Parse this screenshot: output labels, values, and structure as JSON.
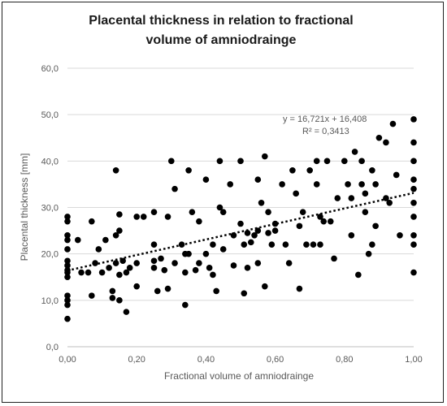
{
  "chart_data": {
    "type": "scatter",
    "title_line1": "Placental thickness in relation to fractional",
    "title_line2": "volume of amniodrainge",
    "xlabel": "Fractional volume of amniodrainge",
    "ylabel": "Placental thickness [mm]",
    "xlim": [
      0,
      1
    ],
    "ylim": [
      0,
      60
    ],
    "x_ticks": [
      "0,00",
      "0,20",
      "0,40",
      "0,60",
      "0,80",
      "1,00"
    ],
    "y_ticks": [
      "0,0",
      "10,0",
      "20,0",
      "30,0",
      "40,0",
      "50,0",
      "60,0"
    ],
    "grid": "horizontal",
    "marker_color": "#000000",
    "trendline": {
      "type": "linear",
      "slope": 16.721,
      "intercept": 16.408,
      "equation": "y = 16,721x + 16,408",
      "r_squared": "R² = 0,3413",
      "style": "dotted"
    },
    "points": [
      [
        0.0,
        28.0
      ],
      [
        0.0,
        27.0
      ],
      [
        0.0,
        24.0
      ],
      [
        0.0,
        23.0
      ],
      [
        0.0,
        21.0
      ],
      [
        0.0,
        18.5
      ],
      [
        0.0,
        17.5
      ],
      [
        0.0,
        16.5
      ],
      [
        0.0,
        16.0
      ],
      [
        0.0,
        15.0
      ],
      [
        0.0,
        11.0
      ],
      [
        0.0,
        10.0
      ],
      [
        0.0,
        9.0
      ],
      [
        0.0,
        6.0
      ],
      [
        0.03,
        23.0
      ],
      [
        0.04,
        16.0
      ],
      [
        0.06,
        16.0
      ],
      [
        0.07,
        27.0
      ],
      [
        0.07,
        11.0
      ],
      [
        0.08,
        18.0
      ],
      [
        0.09,
        21.0
      ],
      [
        0.1,
        16.0
      ],
      [
        0.11,
        23.0
      ],
      [
        0.12,
        17.0
      ],
      [
        0.13,
        12.0
      ],
      [
        0.13,
        10.5
      ],
      [
        0.14,
        38.0
      ],
      [
        0.14,
        24.0
      ],
      [
        0.14,
        18.0
      ],
      [
        0.15,
        28.5
      ],
      [
        0.15,
        25.0
      ],
      [
        0.15,
        15.5
      ],
      [
        0.15,
        10.0
      ],
      [
        0.16,
        18.5
      ],
      [
        0.17,
        16.0
      ],
      [
        0.17,
        7.5
      ],
      [
        0.18,
        17.0
      ],
      [
        0.2,
        28.0
      ],
      [
        0.2,
        18.0
      ],
      [
        0.2,
        13.0
      ],
      [
        0.22,
        28.0
      ],
      [
        0.25,
        29.0
      ],
      [
        0.25,
        22.0
      ],
      [
        0.25,
        18.5
      ],
      [
        0.25,
        17.0
      ],
      [
        0.26,
        12.0
      ],
      [
        0.27,
        19.0
      ],
      [
        0.28,
        16.5
      ],
      [
        0.29,
        28.0
      ],
      [
        0.29,
        12.5
      ],
      [
        0.3,
        40.0
      ],
      [
        0.31,
        34.0
      ],
      [
        0.31,
        18.0
      ],
      [
        0.33,
        22.0
      ],
      [
        0.34,
        20.0
      ],
      [
        0.34,
        16.0
      ],
      [
        0.34,
        9.0
      ],
      [
        0.35,
        20.0
      ],
      [
        0.35,
        38.0
      ],
      [
        0.36,
        29.0
      ],
      [
        0.37,
        16.5
      ],
      [
        0.38,
        18.0
      ],
      [
        0.38,
        27.0
      ],
      [
        0.4,
        36.0
      ],
      [
        0.4,
        20.0
      ],
      [
        0.41,
        17.0
      ],
      [
        0.42,
        22.0
      ],
      [
        0.42,
        15.5
      ],
      [
        0.43,
        12.0
      ],
      [
        0.44,
        40.0
      ],
      [
        0.44,
        30.0
      ],
      [
        0.45,
        29.0
      ],
      [
        0.45,
        21.0
      ],
      [
        0.47,
        35.0
      ],
      [
        0.48,
        24.0
      ],
      [
        0.48,
        17.5
      ],
      [
        0.5,
        40.0
      ],
      [
        0.5,
        26.5
      ],
      [
        0.51,
        22.0
      ],
      [
        0.51,
        11.5
      ],
      [
        0.52,
        24.5
      ],
      [
        0.52,
        17.0
      ],
      [
        0.53,
        22.5
      ],
      [
        0.54,
        24.0
      ],
      [
        0.55,
        36.0
      ],
      [
        0.55,
        18.0
      ],
      [
        0.55,
        25.0
      ],
      [
        0.56,
        31.0
      ],
      [
        0.57,
        41.0
      ],
      [
        0.57,
        13.0
      ],
      [
        0.58,
        29.0
      ],
      [
        0.58,
        24.5
      ],
      [
        0.59,
        22.0
      ],
      [
        0.6,
        26.5
      ],
      [
        0.6,
        25.0
      ],
      [
        0.62,
        35.0
      ],
      [
        0.63,
        22.0
      ],
      [
        0.64,
        18.0
      ],
      [
        0.65,
        38.0
      ],
      [
        0.66,
        33.0
      ],
      [
        0.67,
        26.0
      ],
      [
        0.67,
        12.5
      ],
      [
        0.68,
        29.0
      ],
      [
        0.69,
        22.0
      ],
      [
        0.7,
        38.0
      ],
      [
        0.71,
        22.0
      ],
      [
        0.72,
        40.0
      ],
      [
        0.72,
        35.0
      ],
      [
        0.73,
        28.0
      ],
      [
        0.73,
        22.0
      ],
      [
        0.74,
        27.0
      ],
      [
        0.75,
        40.0
      ],
      [
        0.76,
        27.0
      ],
      [
        0.77,
        19.0
      ],
      [
        0.78,
        32.0
      ],
      [
        0.8,
        40.0
      ],
      [
        0.81,
        35.0
      ],
      [
        0.82,
        32.0
      ],
      [
        0.82,
        24.0
      ],
      [
        0.83,
        42.0
      ],
      [
        0.84,
        15.5
      ],
      [
        0.85,
        40.0
      ],
      [
        0.85,
        35.0
      ],
      [
        0.86,
        33.0
      ],
      [
        0.86,
        29.0
      ],
      [
        0.87,
        20.0
      ],
      [
        0.88,
        38.0
      ],
      [
        0.88,
        22.0
      ],
      [
        0.89,
        35.0
      ],
      [
        0.89,
        26.0
      ],
      [
        0.9,
        45.0
      ],
      [
        0.92,
        44.0
      ],
      [
        0.92,
        32.0
      ],
      [
        0.93,
        31.0
      ],
      [
        0.94,
        48.0
      ],
      [
        0.95,
        37.0
      ],
      [
        0.96,
        24.0
      ],
      [
        1.0,
        49.0
      ],
      [
        1.0,
        44.0
      ],
      [
        1.0,
        40.0
      ],
      [
        1.0,
        36.0
      ],
      [
        1.0,
        34.0
      ],
      [
        1.0,
        31.0
      ],
      [
        1.0,
        28.0
      ],
      [
        1.0,
        24.0
      ],
      [
        1.0,
        22.0
      ],
      [
        1.0,
        16.0
      ]
    ]
  }
}
